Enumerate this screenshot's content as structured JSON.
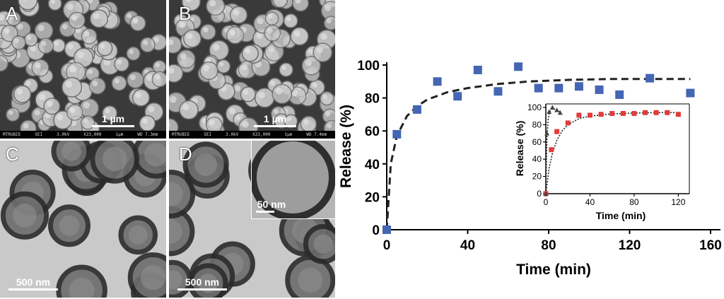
{
  "panels": [
    {
      "label": "A",
      "scale_bar": "1 µm",
      "info": [
        "MTRUBIE",
        "SEI",
        "3.0kV",
        "X23,000",
        "1µm",
        "WD 7.3mm"
      ]
    },
    {
      "label": "B",
      "scale_bar": "1 µm",
      "info": [
        "MTRUBIE",
        "SEI",
        "3.0kV",
        "X23,000",
        "1µm",
        "WD 7.4mm"
      ]
    },
    {
      "label": "C",
      "scale_bar": "500 nm"
    },
    {
      "label": "D",
      "scale_bar": "500 nm",
      "inset_scale_bar": "50 nm"
    }
  ],
  "image_colors": {
    "sem_bg": "#3a3a3a",
    "sem_particle": "#c8c8c8",
    "tem_bg": "#c9c9c9",
    "tem_particle": "#2b2b2b"
  },
  "chart_data": [
    {
      "type": "scatter",
      "title": "",
      "xlabel": "Time (min)",
      "ylabel": "Release (%)",
      "xlim": [
        0,
        160
      ],
      "ylim": [
        0,
        100
      ],
      "xticks": [
        0,
        40,
        80,
        120,
        160
      ],
      "yticks": [
        0,
        20,
        40,
        60,
        80,
        100
      ],
      "grid": false,
      "marker_color": "#4466b3",
      "fit_color": "#222222",
      "series": [
        {
          "x": [
            0,
            5,
            15,
            25,
            35,
            45,
            55,
            65,
            75,
            85,
            95,
            105,
            115,
            130,
            150
          ],
          "y": [
            0,
            58,
            73,
            90,
            81,
            97,
            84,
            99,
            86,
            86,
            87,
            85,
            82,
            92,
            83
          ]
        }
      ],
      "fit": {
        "x": [
          0,
          2,
          5,
          10,
          15,
          20,
          30,
          40,
          55,
          70,
          90,
          110,
          130,
          150
        ],
        "y": [
          0,
          40,
          57,
          69,
          75,
          79,
          83.5,
          86,
          88.5,
          90,
          91,
          91.5,
          91.5,
          91.5
        ]
      }
    },
    {
      "type": "scatter",
      "inset": true,
      "xlabel": "Time (min)",
      "ylabel": "Release (%)",
      "xlim": [
        0,
        130
      ],
      "ylim": [
        0,
        100
      ],
      "xticks": [
        0,
        40,
        80,
        120
      ],
      "yticks": [
        0,
        20,
        40,
        60,
        80,
        100
      ],
      "grid": false,
      "series": [
        {
          "color": "#e33a3a",
          "marker": "square",
          "x": [
            0,
            5,
            10,
            20,
            30,
            40,
            50,
            60,
            70,
            80,
            90,
            100,
            110,
            120
          ],
          "y": [
            0,
            51,
            72,
            82,
            91,
            91,
            92,
            93,
            93,
            93,
            94,
            94,
            94,
            92
          ],
          "fit_x": [
            0,
            3,
            6,
            10,
            15,
            20,
            30,
            40,
            60,
            80,
            100,
            120
          ],
          "fit_y": [
            0,
            30,
            47,
            62,
            73,
            80,
            87,
            90,
            92.5,
            93.5,
            94,
            94
          ]
        },
        {
          "color": "#444444",
          "marker": "triangle",
          "x": [
            0,
            1,
            3,
            6,
            10,
            13
          ],
          "y": [
            0,
            70,
            95,
            100,
            97,
            94
          ],
          "fit_x": [
            0,
            0.5,
            1,
            2,
            3,
            5,
            8,
            13
          ],
          "fit_y": [
            0,
            40,
            65,
            85,
            93,
            98,
            98,
            95
          ]
        }
      ]
    }
  ]
}
